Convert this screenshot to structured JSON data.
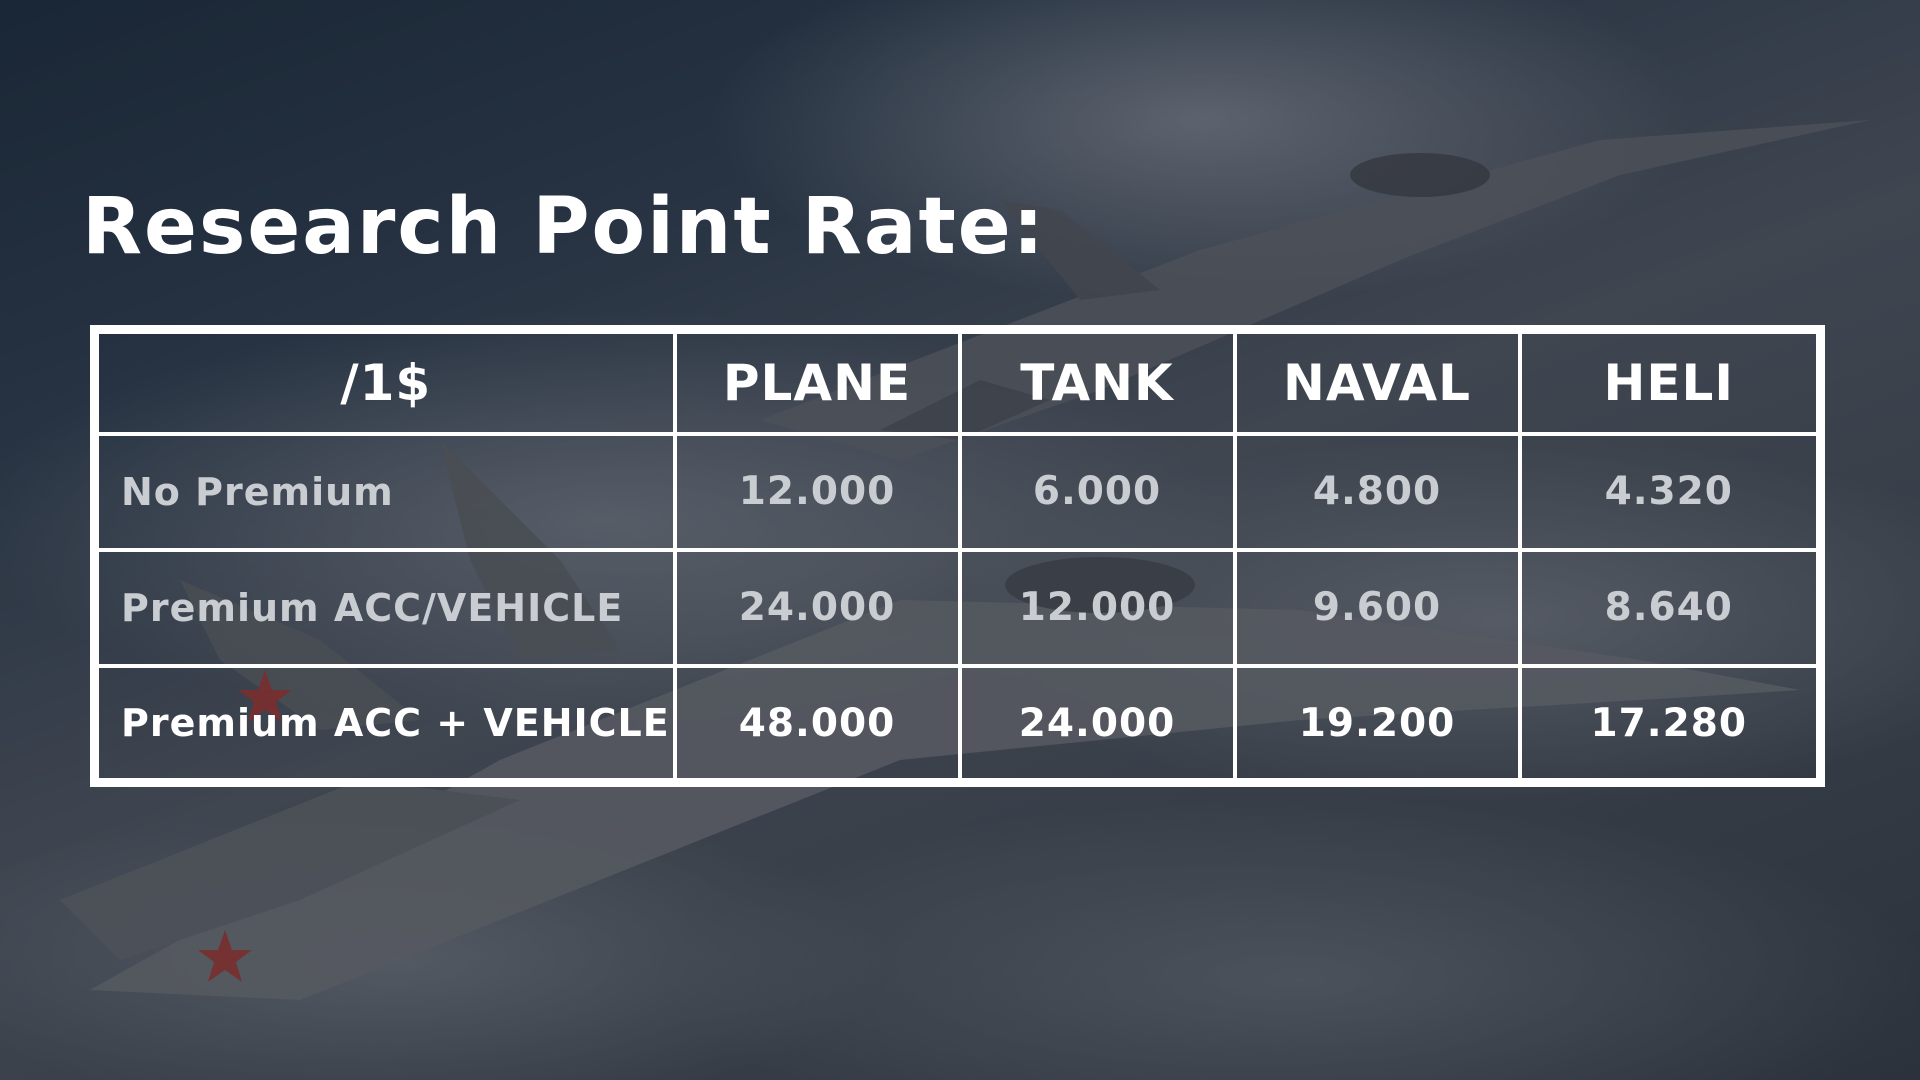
{
  "title": "Research Point Rate:",
  "table": {
    "headers": [
      "/1$",
      "PLANE",
      "TANK",
      "NAVAL",
      "HELI"
    ],
    "rows": [
      {
        "label": "No Premium",
        "values": [
          "12.000",
          "6.000",
          "4.800",
          "4.320"
        ]
      },
      {
        "label": "Premium ACC/VEHICLE",
        "values": [
          "24.000",
          "12.000",
          "9.600",
          "8.640"
        ]
      },
      {
        "label": "Premium ACC + VEHICLE",
        "values": [
          "48.000",
          "24.000",
          "19.200",
          "17.280"
        ]
      }
    ]
  },
  "colors": {
    "text_primary": "#ffffff",
    "text_muted": "#c9cdd2",
    "border": "#ffffff"
  }
}
